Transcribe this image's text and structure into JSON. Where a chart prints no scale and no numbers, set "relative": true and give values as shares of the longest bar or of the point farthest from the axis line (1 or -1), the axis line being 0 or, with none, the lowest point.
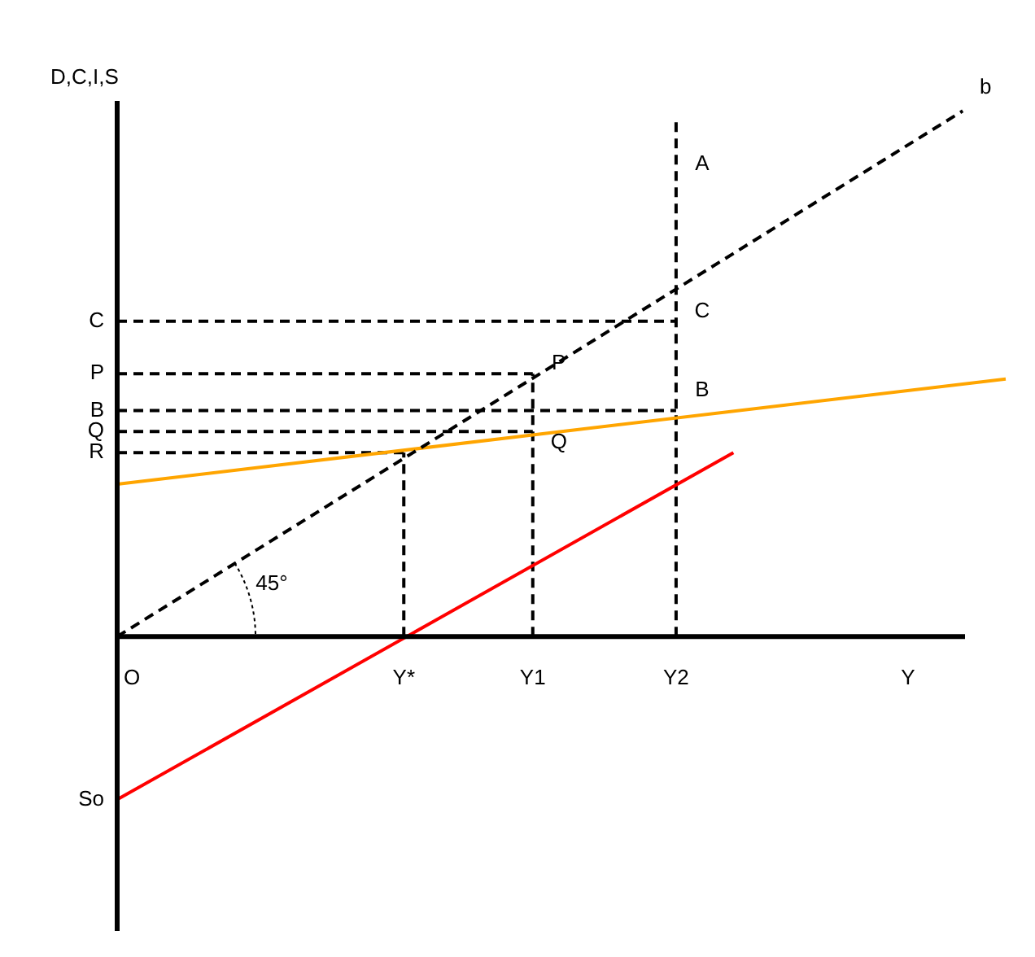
{
  "chart_data": {
    "type": "line",
    "relative": true,
    "ylabel": "D,C,I,S",
    "xlabel": "Y",
    "marker": "none",
    "categories": [
      null,
      null,
      null,
      null,
      null,
      null,
      null,
      null,
      null,
      null,
      null,
      null,
      null,
      null,
      null,
      null,
      null,
      null,
      null,
      null,
      "Y*",
      null,
      null,
      null,
      null,
      null,
      null,
      null,
      null,
      "Y1",
      null,
      null,
      null,
      null,
      null,
      null,
      null,
      null,
      null,
      "Y2",
      null,
      null,
      null,
      null,
      null,
      null,
      null,
      null,
      null,
      null,
      null,
      null,
      null,
      null,
      null,
      null,
      null,
      null,
      null,
      null,
      null,
      null,
      null
    ],
    "series": [
      {
        "name": "b",
        "color": "#000000",
        "line_style": "dashed",
        "values": [
          0,
          null,
          null,
          null,
          null,
          null,
          null,
          null,
          null,
          null,
          null,
          null,
          null,
          null,
          null,
          null,
          null,
          null,
          null,
          null,
          null,
          null,
          null,
          null,
          null,
          null,
          null,
          null,
          null,
          null,
          null,
          null,
          null,
          null,
          null,
          null,
          null,
          null,
          null,
          null,
          null,
          null,
          null,
          null,
          null,
          null,
          null,
          null,
          null,
          null,
          null,
          null,
          null,
          null,
          null,
          null,
          null,
          null,
          null,
          1,
          null,
          null,
          null
        ]
      },
      {
        "color": "#ffa500",
        "line_style": "solid",
        "values": [
          0.29,
          null,
          null,
          null,
          null,
          null,
          null,
          null,
          null,
          null,
          null,
          null,
          null,
          null,
          null,
          null,
          null,
          null,
          null,
          null,
          null,
          null,
          null,
          null,
          null,
          null,
          null,
          null,
          null,
          null,
          null,
          null,
          null,
          null,
          null,
          null,
          null,
          null,
          null,
          null,
          null,
          null,
          null,
          null,
          null,
          null,
          null,
          null,
          null,
          null,
          null,
          null,
          null,
          null,
          null,
          null,
          null,
          null,
          null,
          null,
          null,
          null,
          0.49
        ]
      },
      {
        "name": "So",
        "color": "#ff0000",
        "line_style": "solid",
        "values": [
          -0.31,
          null,
          null,
          null,
          null,
          null,
          null,
          null,
          null,
          null,
          null,
          null,
          null,
          null,
          null,
          null,
          null,
          null,
          null,
          null,
          null,
          null,
          null,
          null,
          null,
          null,
          null,
          null,
          null,
          null,
          null,
          null,
          null,
          null,
          null,
          null,
          null,
          null,
          null,
          null,
          null,
          null,
          null,
          0.35,
          null,
          null,
          null,
          null,
          null,
          null,
          null,
          null,
          null,
          null,
          null,
          null,
          null,
          null,
          null,
          null,
          null,
          null,
          null
        ]
      },
      {
        "name": "C",
        "color": "#000000",
        "line_style": "dashed",
        "values": [
          0.6,
          null,
          null,
          null,
          null,
          null,
          null,
          null,
          null,
          null,
          null,
          null,
          null,
          null,
          null,
          null,
          null,
          null,
          null,
          null,
          null,
          null,
          null,
          null,
          null,
          null,
          null,
          null,
          null,
          null,
          null,
          null,
          null,
          null,
          null,
          null,
          null,
          null,
          null,
          0.6,
          null,
          null,
          null,
          null,
          null,
          null,
          null,
          null,
          null,
          null,
          null,
          null,
          null,
          null,
          null,
          null,
          null,
          null,
          null,
          null,
          null,
          null,
          null
        ]
      },
      {
        "name": "P",
        "color": "#000000",
        "line_style": "dashed",
        "values": [
          0.5,
          null,
          null,
          null,
          null,
          null,
          null,
          null,
          null,
          null,
          null,
          null,
          null,
          null,
          null,
          null,
          null,
          null,
          null,
          null,
          null,
          null,
          null,
          null,
          null,
          null,
          null,
          null,
          null,
          0.5,
          null,
          null,
          null,
          null,
          null,
          null,
          null,
          null,
          null,
          null,
          null,
          null,
          null,
          null,
          null,
          null,
          null,
          null,
          null,
          null,
          null,
          null,
          null,
          null,
          null,
          null,
          null,
          null,
          null,
          null,
          null,
          null,
          null
        ]
      },
      {
        "name": "B",
        "color": "#000000",
        "line_style": "dashed",
        "values": [
          0.43,
          null,
          null,
          null,
          null,
          null,
          null,
          null,
          null,
          null,
          null,
          null,
          null,
          null,
          null,
          null,
          null,
          null,
          null,
          null,
          null,
          null,
          null,
          null,
          null,
          null,
          null,
          null,
          null,
          null,
          null,
          null,
          null,
          null,
          null,
          null,
          null,
          null,
          null,
          0.43,
          null,
          null,
          null,
          null,
          null,
          null,
          null,
          null,
          null,
          null,
          null,
          null,
          null,
          null,
          null,
          null,
          null,
          null,
          null,
          null,
          null,
          null,
          null
        ]
      },
      {
        "name": "Q",
        "color": "#000000",
        "line_style": "dashed",
        "values": [
          0.39,
          null,
          null,
          null,
          null,
          null,
          null,
          null,
          null,
          null,
          null,
          null,
          null,
          null,
          null,
          null,
          null,
          null,
          null,
          null,
          null,
          null,
          null,
          null,
          null,
          null,
          null,
          null,
          null,
          0.39,
          null,
          null,
          null,
          null,
          null,
          null,
          null,
          null,
          null,
          null,
          null,
          null,
          null,
          null,
          null,
          null,
          null,
          null,
          null,
          null,
          null,
          null,
          null,
          null,
          null,
          null,
          null,
          null,
          null,
          null,
          null,
          null,
          null
        ]
      },
      {
        "name": "R",
        "color": "#000000",
        "line_style": "dashed",
        "values": [
          0.35,
          null,
          null,
          null,
          null,
          null,
          null,
          null,
          null,
          null,
          null,
          null,
          null,
          null,
          null,
          null,
          null,
          null,
          null,
          null,
          0.35,
          null,
          null,
          null,
          null,
          null,
          null,
          null,
          null,
          null,
          null,
          null,
          null,
          null,
          null,
          null,
          null,
          null,
          null,
          null,
          null,
          null,
          null,
          null,
          null,
          null,
          null,
          null,
          null,
          null,
          null,
          null,
          null,
          null,
          null,
          null,
          null,
          null,
          null,
          null,
          null,
          null,
          null
        ]
      },
      {
        "color": "#000000",
        "line_style": "dashed",
        "x": [
          "Y*",
          "Y*"
        ],
        "values": [
          0,
          0.35
        ]
      },
      {
        "color": "#000000",
        "line_style": "dashed",
        "x": [
          "Y1",
          "Y1"
        ],
        "values": [
          0,
          0.5
        ]
      },
      {
        "color": "#000000",
        "line_style": "dashed",
        "x": [
          "Y2",
          "Y2"
        ],
        "values": [
          0,
          0.98
        ]
      }
    ],
    "annotations": [
      {
        "text": "P",
        "x": "Y1",
        "y": 0.5
      },
      {
        "text": "Q",
        "x": "Y1",
        "y": 0.35
      },
      {
        "text": "B",
        "x": "Y2",
        "y": 0.45
      },
      {
        "text": "C",
        "x": "Y2",
        "y": 0.6
      },
      {
        "text": "A",
        "x": "Y2",
        "y": 0.88
      },
      "O",
      "45°"
    ]
  }
}
